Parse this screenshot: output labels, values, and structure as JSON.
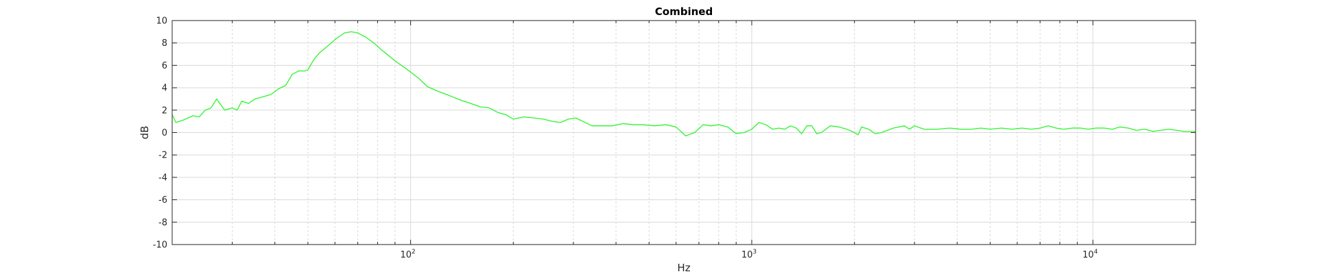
{
  "chart_data": {
    "type": "line",
    "title": "Combined",
    "xlabel": "Hz",
    "ylabel": "dB",
    "xscale": "log",
    "xlim": [
      20,
      20000
    ],
    "ylim": [
      -10,
      10
    ],
    "grid": true,
    "minor_grid": true,
    "y_ticks": [
      -10,
      -8,
      -6,
      -4,
      -2,
      0,
      2,
      4,
      6,
      8,
      10
    ],
    "x_ticks": [
      {
        "value": 100,
        "base": "10",
        "exp": "2"
      },
      {
        "value": 1000,
        "base": "10",
        "exp": "3"
      },
      {
        "value": 10000,
        "base": "10",
        "exp": "4"
      }
    ],
    "colors": {
      "line": "#2bf52b",
      "grid": "#d9d9d9",
      "axis": "#262626"
    },
    "series": [
      {
        "points": [
          [
            20,
            1.6
          ],
          [
            20.5,
            0.9
          ],
          [
            21.5,
            1.1
          ],
          [
            23,
            1.5
          ],
          [
            24,
            1.4
          ],
          [
            25,
            2.0
          ],
          [
            26,
            2.2
          ],
          [
            27,
            3.0
          ],
          [
            28.5,
            2.0
          ],
          [
            30,
            2.2
          ],
          [
            31,
            2.0
          ],
          [
            32,
            2.8
          ],
          [
            33.5,
            2.6
          ],
          [
            35,
            3.0
          ],
          [
            37,
            3.2
          ],
          [
            39,
            3.4
          ],
          [
            41,
            3.9
          ],
          [
            43,
            4.2
          ],
          [
            45,
            5.2
          ],
          [
            47,
            5.5
          ],
          [
            49,
            5.5
          ],
          [
            50,
            5.6
          ],
          [
            52,
            6.5
          ],
          [
            54,
            7.1
          ],
          [
            56,
            7.5
          ],
          [
            58,
            7.9
          ],
          [
            60,
            8.3
          ],
          [
            62,
            8.6
          ],
          [
            64,
            8.9
          ],
          [
            67,
            9.0
          ],
          [
            70,
            8.9
          ],
          [
            74,
            8.5
          ],
          [
            78,
            8.0
          ],
          [
            82,
            7.4
          ],
          [
            86,
            6.9
          ],
          [
            90,
            6.4
          ],
          [
            95,
            5.9
          ],
          [
            100,
            5.4
          ],
          [
            106,
            4.8
          ],
          [
            112,
            4.1
          ],
          [
            120,
            3.7
          ],
          [
            130,
            3.3
          ],
          [
            140,
            2.9
          ],
          [
            150,
            2.6
          ],
          [
            160,
            2.3
          ],
          [
            170,
            2.2
          ],
          [
            180,
            1.8
          ],
          [
            190,
            1.6
          ],
          [
            200,
            1.2
          ],
          [
            215,
            1.4
          ],
          [
            230,
            1.3
          ],
          [
            245,
            1.2
          ],
          [
            260,
            1.0
          ],
          [
            275,
            0.9
          ],
          [
            290,
            1.2
          ],
          [
            305,
            1.3
          ],
          [
            320,
            1.0
          ],
          [
            340,
            0.6
          ],
          [
            360,
            0.6
          ],
          [
            390,
            0.6
          ],
          [
            420,
            0.8
          ],
          [
            450,
            0.7
          ],
          [
            480,
            0.7
          ],
          [
            520,
            0.6
          ],
          [
            560,
            0.7
          ],
          [
            600,
            0.5
          ],
          [
            640,
            -0.3
          ],
          [
            680,
            0.0
          ],
          [
            720,
            0.7
          ],
          [
            760,
            0.6
          ],
          [
            800,
            0.7
          ],
          [
            850,
            0.5
          ],
          [
            900,
            -0.1
          ],
          [
            950,
            0.0
          ],
          [
            1000,
            0.3
          ],
          [
            1050,
            0.9
          ],
          [
            1100,
            0.7
          ],
          [
            1150,
            0.3
          ],
          [
            1200,
            0.4
          ],
          [
            1250,
            0.3
          ],
          [
            1300,
            0.6
          ],
          [
            1350,
            0.4
          ],
          [
            1400,
            -0.1
          ],
          [
            1450,
            0.6
          ],
          [
            1500,
            0.6
          ],
          [
            1550,
            -0.1
          ],
          [
            1600,
            0.0
          ],
          [
            1700,
            0.6
          ],
          [
            1800,
            0.5
          ],
          [
            1900,
            0.3
          ],
          [
            2000,
            0.0
          ],
          [
            2050,
            -0.2
          ],
          [
            2100,
            0.5
          ],
          [
            2200,
            0.3
          ],
          [
            2300,
            -0.1
          ],
          [
            2400,
            0.0
          ],
          [
            2600,
            0.4
          ],
          [
            2800,
            0.6
          ],
          [
            2900,
            0.3
          ],
          [
            3000,
            0.6
          ],
          [
            3200,
            0.3
          ],
          [
            3500,
            0.3
          ],
          [
            3800,
            0.4
          ],
          [
            4100,
            0.3
          ],
          [
            4400,
            0.3
          ],
          [
            4700,
            0.4
          ],
          [
            5000,
            0.3
          ],
          [
            5400,
            0.4
          ],
          [
            5800,
            0.3
          ],
          [
            6200,
            0.4
          ],
          [
            6600,
            0.3
          ],
          [
            7000,
            0.4
          ],
          [
            7400,
            0.6
          ],
          [
            7800,
            0.4
          ],
          [
            8200,
            0.3
          ],
          [
            8700,
            0.4
          ],
          [
            9200,
            0.4
          ],
          [
            9700,
            0.3
          ],
          [
            10200,
            0.4
          ],
          [
            10800,
            0.4
          ],
          [
            11400,
            0.3
          ],
          [
            12000,
            0.5
          ],
          [
            12700,
            0.4
          ],
          [
            13400,
            0.2
          ],
          [
            14200,
            0.3
          ],
          [
            15000,
            0.1
          ],
          [
            15800,
            0.2
          ],
          [
            16700,
            0.3
          ],
          [
            17600,
            0.2
          ],
          [
            18500,
            0.1
          ],
          [
            19300,
            0.1
          ],
          [
            20000,
            0.1
          ]
        ]
      }
    ]
  }
}
